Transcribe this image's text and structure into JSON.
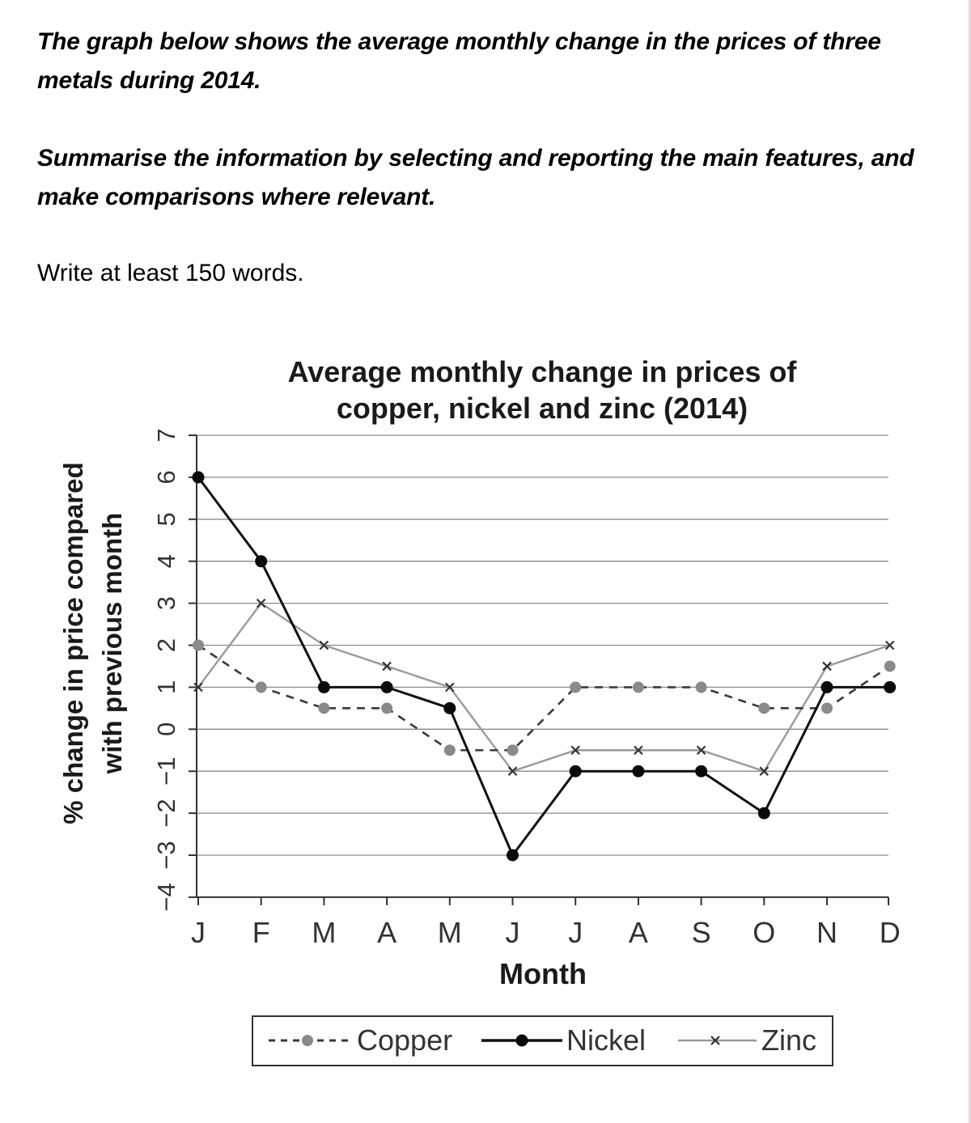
{
  "task": {
    "line1": "The graph below shows the average monthly change in the prices of three metals during 2014.",
    "line2": "Summarise the information by selecting and reporting the main features, and make comparisons where relevant.",
    "line3": "Write at least 150 words."
  },
  "colors": {
    "copper": "#3a3a3a",
    "nickel": "#111111",
    "zinc": "#9a9a9a",
    "grid": "#8a8a8a"
  },
  "chart_data": {
    "type": "line",
    "title": [
      "Average monthly change in prices of",
      "copper, nickel and zinc (2014)"
    ],
    "xlabel": "Month",
    "ylabel": [
      "% change in price compared",
      "with previous month"
    ],
    "categories": [
      "J",
      "F",
      "M",
      "A",
      "M",
      "J",
      "J",
      "A",
      "S",
      "O",
      "N",
      "D"
    ],
    "ylim": [
      -4,
      7
    ],
    "yticks": [
      "7",
      "6",
      "5",
      "4",
      "3",
      "2",
      "1",
      "0",
      "−1",
      "−2",
      "−3",
      "−4"
    ],
    "grid": true,
    "legend_position": "bottom",
    "series": [
      {
        "name": "Copper",
        "style": "dashed-circle",
        "values": [
          2,
          1,
          0.5,
          0.5,
          -0.5,
          -0.5,
          1,
          1,
          1,
          0.5,
          0.5,
          1.5
        ]
      },
      {
        "name": "Nickel",
        "style": "solid-dot",
        "values": [
          6,
          4,
          1,
          1,
          0.5,
          -3,
          -1,
          -1,
          -1,
          -2,
          1,
          1
        ]
      },
      {
        "name": "Zinc",
        "style": "solid-cross",
        "values": [
          1,
          3,
          2,
          1.5,
          1,
          -1,
          -0.5,
          -0.5,
          -0.5,
          -1,
          1.5,
          2
        ]
      }
    ]
  }
}
